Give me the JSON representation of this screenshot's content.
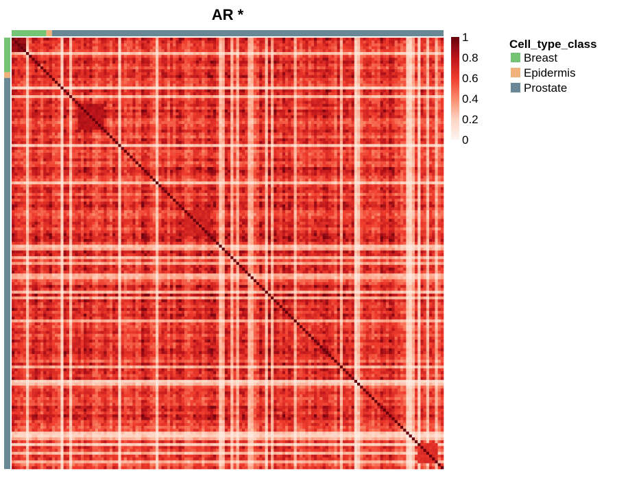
{
  "chart_data": {
    "type": "heatmap",
    "title": "AR *",
    "matrix_size": 150,
    "value_range": [
      0,
      1
    ],
    "color_scale": {
      "stops": [
        {
          "value": 0,
          "color": "#fff5f0"
        },
        {
          "value": 0.2,
          "color": "#fdd4c2"
        },
        {
          "value": 0.4,
          "color": "#fb8b6c"
        },
        {
          "value": 0.6,
          "color": "#ef3b2c"
        },
        {
          "value": 0.8,
          "color": "#bd151a"
        },
        {
          "value": 1,
          "color": "#67000d"
        }
      ],
      "ticks": [
        "1",
        "0.8",
        "0.6",
        "0.4",
        "0.2",
        "0"
      ]
    },
    "annotation": {
      "name": "Cell_type_class",
      "categories": [
        {
          "label": "Breast",
          "color": "#74c476",
          "count": 12
        },
        {
          "label": "Epidermis",
          "color": "#f0b27a",
          "count": 2
        },
        {
          "label": "Prostate",
          "color": "#678894",
          "count": 136
        }
      ]
    },
    "diagonal_value": 1,
    "legend_position": "top-right"
  }
}
